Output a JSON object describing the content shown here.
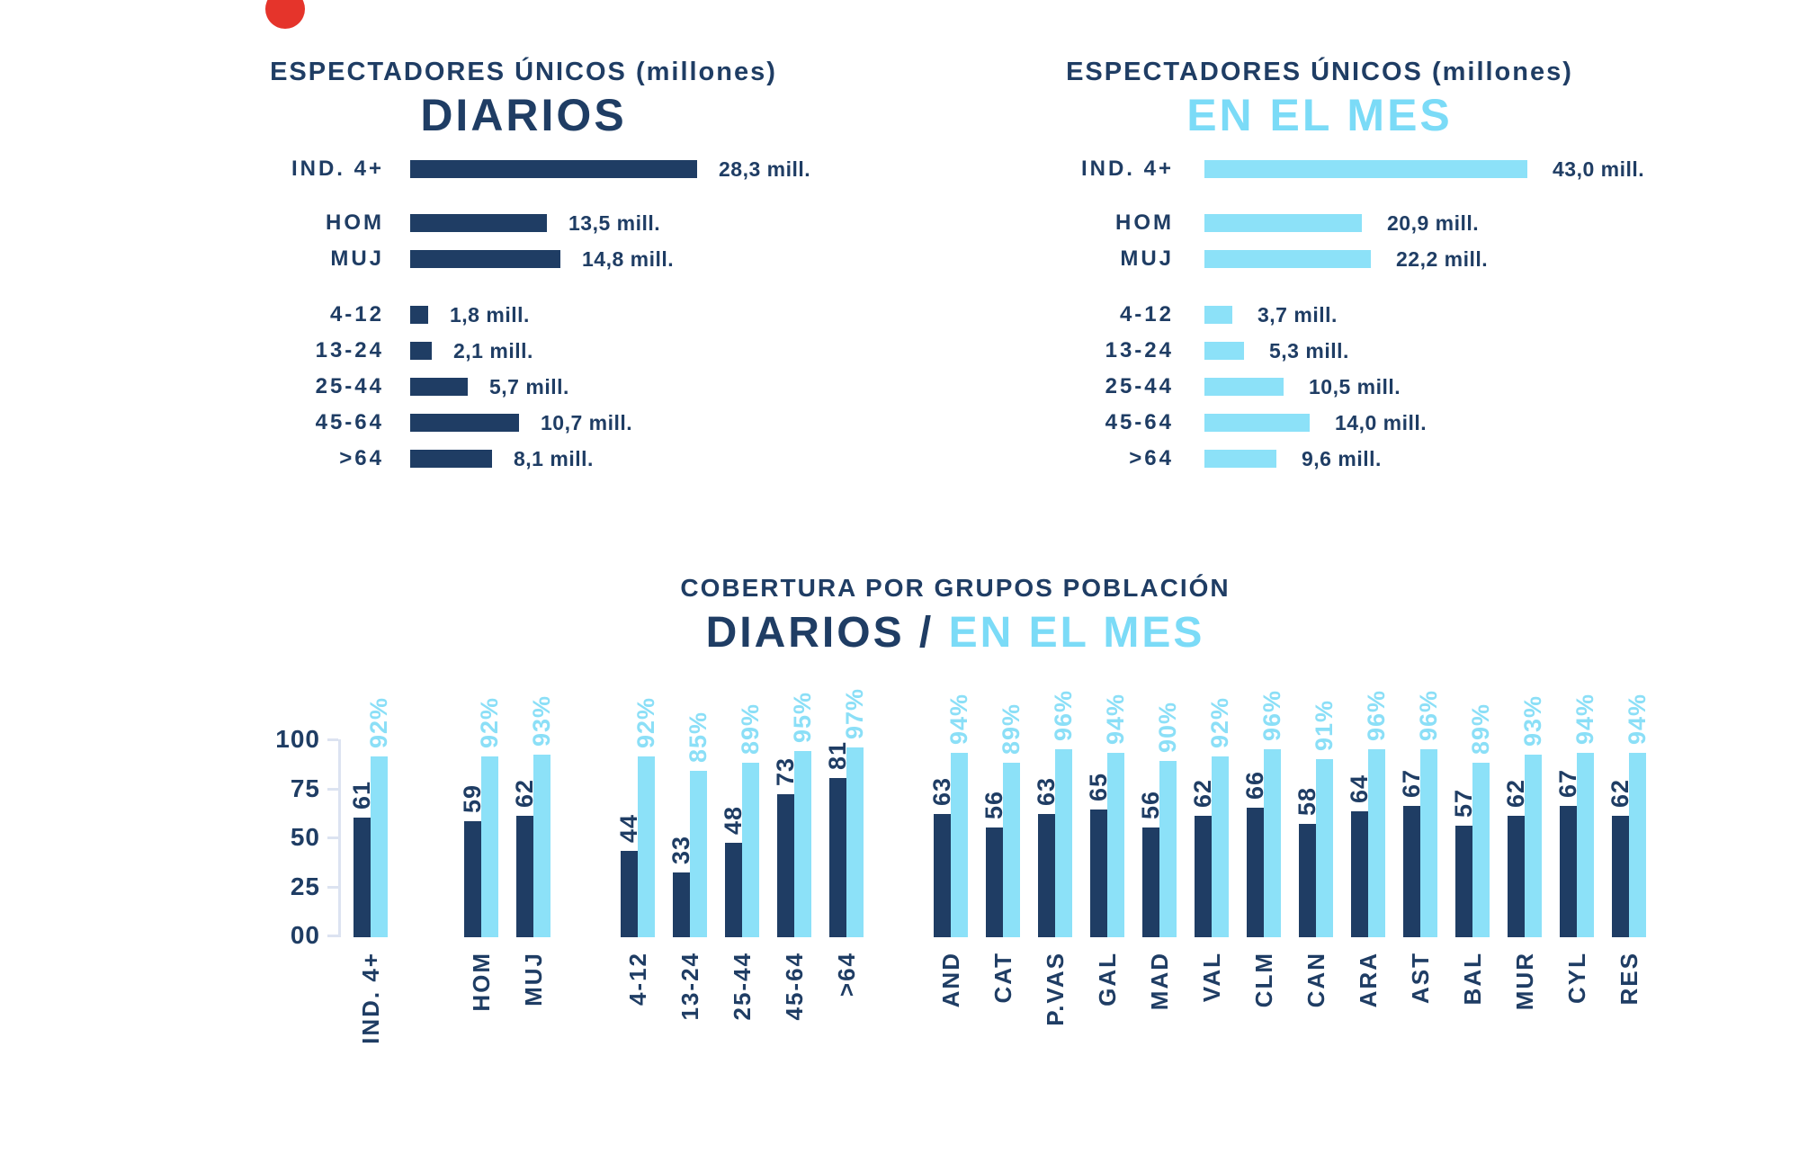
{
  "colors": {
    "navy": "#1F3D64",
    "light_blue_bar": "#8CE1F8",
    "light_blue_text": "#7BDBF7",
    "axis": "#DCE3F1",
    "red_dot": "#E5342B",
    "background": "#FFFFFF"
  },
  "chart_data": [
    {
      "id": "daily",
      "type": "bar",
      "orientation": "horizontal",
      "title": "ESPECTADORES ÚNICOS (millones)",
      "subtitle": "DIARIOS",
      "unit": "millones",
      "categories": [
        "IND. 4+",
        "HOM",
        "MUJ",
        "4-12",
        "13-24",
        "25-44",
        "45-64",
        ">64"
      ],
      "values": [
        28.3,
        13.5,
        14.8,
        1.8,
        2.1,
        5.7,
        10.7,
        8.1
      ],
      "groups": [
        [
          {
            "label": "IND. 4+",
            "value": 28.3,
            "text": "28,3 mill."
          }
        ],
        [
          {
            "label": "HOM",
            "value": 13.5,
            "text": "13,5 mill."
          },
          {
            "label": "MUJ",
            "value": 14.8,
            "text": "14,8 mill."
          }
        ],
        [
          {
            "label": "4-12",
            "value": 1.8,
            "text": "1,8 mill."
          },
          {
            "label": "13-24",
            "value": 2.1,
            "text": "2,1 mill."
          },
          {
            "label": "25-44",
            "value": 5.7,
            "text": "5,7 mill."
          },
          {
            "label": "45-64",
            "value": 10.7,
            "text": "10,7 mill."
          },
          {
            "label": ">64",
            "value": 8.1,
            "text": "8,1 mill."
          }
        ]
      ]
    },
    {
      "id": "monthly",
      "type": "bar",
      "orientation": "horizontal",
      "title": "ESPECTADORES ÚNICOS (millones)",
      "subtitle": "EN EL MES",
      "unit": "millones",
      "categories": [
        "IND. 4+",
        "HOM",
        "MUJ",
        "4-12",
        "13-24",
        "25-44",
        "45-64",
        ">64"
      ],
      "values": [
        43.0,
        20.9,
        22.2,
        3.7,
        5.3,
        10.5,
        14.0,
        9.6
      ],
      "groups": [
        [
          {
            "label": "IND. 4+",
            "value": 43.0,
            "text": "43,0 mill."
          }
        ],
        [
          {
            "label": "HOM",
            "value": 20.9,
            "text": "20,9 mill."
          },
          {
            "label": "MUJ",
            "value": 22.2,
            "text": "22,2 mill."
          }
        ],
        [
          {
            "label": "4-12",
            "value": 3.7,
            "text": "3,7 mill."
          },
          {
            "label": "13-24",
            "value": 5.3,
            "text": "5,3 mill."
          },
          {
            "label": "25-44",
            "value": 10.5,
            "text": "10,5 mill."
          },
          {
            "label": "45-64",
            "value": 14.0,
            "text": "14,0 mill."
          },
          {
            "label": ">64",
            "value": 9.6,
            "text": "9,6 mill."
          }
        ]
      ]
    },
    {
      "id": "coverage",
      "type": "bar",
      "orientation": "vertical",
      "title": "COBERTURA POR GRUPOS POBLACIÓN",
      "subtitle_dark": "DIARIOS",
      "subtitle_separator": " / ",
      "subtitle_light": "EN EL MES",
      "series_names": [
        "DIARIOS",
        "EN EL MES"
      ],
      "ylim": [
        0,
        100
      ],
      "y_ticks": [
        "100",
        "75",
        "50",
        "25",
        "00"
      ],
      "categories": [
        "IND. 4+",
        "HOM",
        "MUJ",
        "4-12",
        "13-24",
        "25-44",
        "45-64",
        ">64",
        "AND",
        "CAT",
        "P.VAS",
        "GAL",
        "MAD",
        "VAL",
        "CLM",
        "CAN",
        "ARA",
        "AST",
        "BAL",
        "MUR",
        "CYL",
        "RES"
      ],
      "series": [
        {
          "name": "DIARIOS",
          "values": [
            61,
            59,
            62,
            44,
            33,
            48,
            73,
            81,
            63,
            56,
            63,
            65,
            56,
            62,
            66,
            58,
            64,
            67,
            57,
            62,
            67,
            62
          ]
        },
        {
          "name": "EN EL MES",
          "format": "percent",
          "values": [
            92,
            92,
            93,
            92,
            85,
            89,
            95,
            97,
            94,
            89,
            96,
            94,
            90,
            92,
            96,
            91,
            96,
            96,
            89,
            93,
            94,
            94
          ]
        }
      ],
      "groups": [
        [
          {
            "label": "IND. 4+",
            "daily": 61,
            "monthly": 92
          }
        ],
        [
          {
            "label": "HOM",
            "daily": 59,
            "monthly": 92
          },
          {
            "label": "MUJ",
            "daily": 62,
            "monthly": 93
          }
        ],
        [
          {
            "label": "4-12",
            "daily": 44,
            "monthly": 92
          },
          {
            "label": "13-24",
            "daily": 33,
            "monthly": 85
          },
          {
            "label": "25-44",
            "daily": 48,
            "monthly": 89
          },
          {
            "label": "45-64",
            "daily": 73,
            "monthly": 95
          },
          {
            "label": ">64",
            "daily": 81,
            "monthly": 97
          }
        ],
        [
          {
            "label": "AND",
            "daily": 63,
            "monthly": 94
          },
          {
            "label": "CAT",
            "daily": 56,
            "monthly": 89
          },
          {
            "label": "P.VAS",
            "daily": 63,
            "monthly": 96
          },
          {
            "label": "GAL",
            "daily": 65,
            "monthly": 94
          },
          {
            "label": "MAD",
            "daily": 56,
            "monthly": 90
          },
          {
            "label": "VAL",
            "daily": 62,
            "monthly": 92
          },
          {
            "label": "CLM",
            "daily": 66,
            "monthly": 96
          },
          {
            "label": "CAN",
            "daily": 58,
            "monthly": 91
          },
          {
            "label": "ARA",
            "daily": 64,
            "monthly": 96
          },
          {
            "label": "AST",
            "daily": 67,
            "monthly": 96
          },
          {
            "label": "BAL",
            "daily": 57,
            "monthly": 89
          },
          {
            "label": "MUR",
            "daily": 62,
            "monthly": 93
          },
          {
            "label": "CYL",
            "daily": 67,
            "monthly": 94
          },
          {
            "label": "RES",
            "daily": 62,
            "monthly": 94
          }
        ]
      ]
    }
  ]
}
